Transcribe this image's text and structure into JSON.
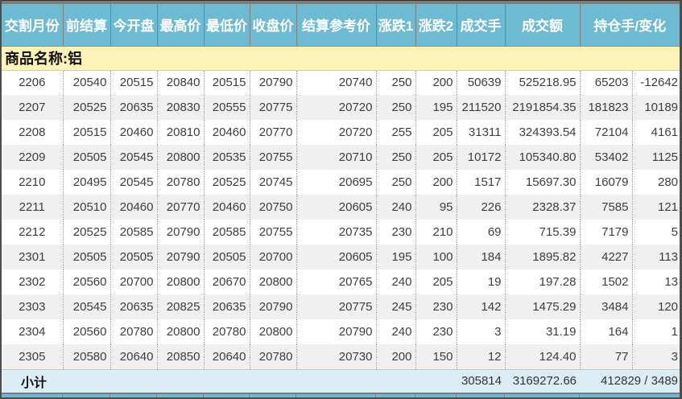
{
  "header": {
    "columns": [
      "交割月份",
      "前结算",
      "今开盘",
      "最高价",
      "最低价",
      "收盘价",
      "结算参考价",
      "涨跌1",
      "涨跌2",
      "成交手",
      "成交额",
      "持仓手/变化"
    ]
  },
  "group": {
    "label": "商品名称:铝"
  },
  "chart_data": {
    "type": "table",
    "title": "商品名称:铝",
    "columns": [
      "交割月份",
      "前结算",
      "今开盘",
      "最高价",
      "最低价",
      "收盘价",
      "结算参考价",
      "涨跌1",
      "涨跌2",
      "成交手",
      "成交额",
      "持仓手",
      "变化"
    ],
    "rows": [
      [
        "2206",
        "20540",
        "20515",
        "20840",
        "20515",
        "20790",
        "20740",
        "250",
        "200",
        "50639",
        "525218.95",
        "65203",
        "-12642"
      ],
      [
        "2207",
        "20525",
        "20635",
        "20830",
        "20555",
        "20775",
        "20720",
        "250",
        "195",
        "211520",
        "2191854.35",
        "181823",
        "10189"
      ],
      [
        "2208",
        "20515",
        "20460",
        "20810",
        "20460",
        "20770",
        "20720",
        "255",
        "205",
        "31311",
        "324393.54",
        "72104",
        "4161"
      ],
      [
        "2209",
        "20505",
        "20545",
        "20800",
        "20535",
        "20755",
        "20710",
        "250",
        "205",
        "10172",
        "105340.80",
        "53402",
        "1125"
      ],
      [
        "2210",
        "20495",
        "20545",
        "20780",
        "20525",
        "20745",
        "20695",
        "250",
        "200",
        "1517",
        "15697.30",
        "16079",
        "280"
      ],
      [
        "2211",
        "20510",
        "20460",
        "20770",
        "20460",
        "20750",
        "20605",
        "240",
        "95",
        "226",
        "2328.37",
        "7585",
        "121"
      ],
      [
        "2212",
        "20525",
        "20585",
        "20790",
        "20585",
        "20755",
        "20735",
        "230",
        "210",
        "69",
        "715.39",
        "7179",
        "5"
      ],
      [
        "2301",
        "20505",
        "20505",
        "20790",
        "20505",
        "20700",
        "20605",
        "195",
        "100",
        "184",
        "1895.82",
        "4227",
        "113"
      ],
      [
        "2302",
        "20560",
        "20700",
        "20800",
        "20670",
        "20800",
        "20765",
        "240",
        "205",
        "19",
        "197.28",
        "1502",
        "13"
      ],
      [
        "2303",
        "20545",
        "20635",
        "20825",
        "20635",
        "20790",
        "20775",
        "245",
        "230",
        "142",
        "1475.29",
        "3484",
        "120"
      ],
      [
        "2304",
        "20560",
        "20780",
        "20800",
        "20780",
        "20800",
        "20790",
        "240",
        "230",
        "3",
        "31.19",
        "164",
        "1"
      ],
      [
        "2305",
        "20580",
        "20640",
        "20850",
        "20640",
        "20780",
        "20730",
        "200",
        "150",
        "12",
        "124.40",
        "77",
        "3"
      ]
    ]
  },
  "subtotal": {
    "label": "小计",
    "volume": "305814",
    "turnover": "3169272.66",
    "open_interest_change": "412829 / 3489"
  },
  "colors": {
    "header_bg": "#6cbbd2",
    "group_bg": "#fdf3b6",
    "subtotal_bg": "#ddedf5",
    "stripe_bg": "#f0f0f0",
    "text": "#3d3d3d"
  }
}
